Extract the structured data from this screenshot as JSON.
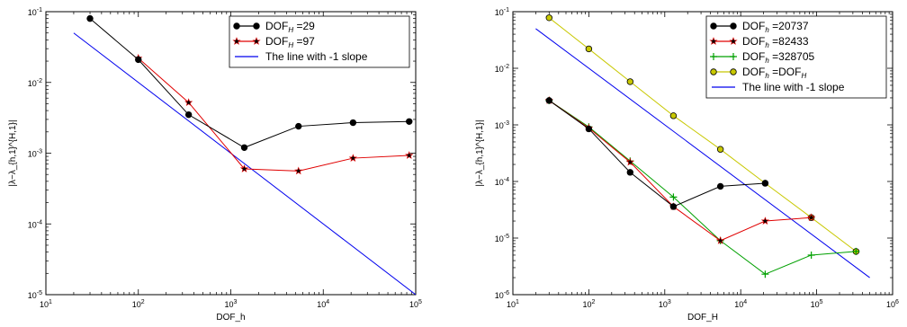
{
  "chart_data": [
    {
      "type": "line",
      "xscale": "log",
      "yscale": "log",
      "xlim": [
        10,
        100000
      ],
      "ylim": [
        1e-05,
        0.1
      ],
      "xlabel": "DOF_h",
      "ylabel": "|λ−λ_{h,1}^{H,1}|",
      "legend_position": "top-right",
      "x_ticks": [
        {
          "v": 10,
          "base": "10",
          "exp": "1"
        },
        {
          "v": 100,
          "base": "10",
          "exp": "2"
        },
        {
          "v": 1000,
          "base": "10",
          "exp": "3"
        },
        {
          "v": 10000,
          "base": "10",
          "exp": "4"
        },
        {
          "v": 100000,
          "base": "10",
          "exp": "5"
        }
      ],
      "y_ticks": [
        {
          "v": 1e-05,
          "base": "10",
          "exp": "-5"
        },
        {
          "v": 0.0001,
          "base": "10",
          "exp": "-4"
        },
        {
          "v": 0.001,
          "base": "10",
          "exp": "-3"
        },
        {
          "v": 0.01,
          "base": "10",
          "exp": "-2"
        },
        {
          "v": 0.1,
          "base": "10",
          "exp": "-1"
        }
      ],
      "series": [
        {
          "name": "DOF_H =29",
          "legend_main": "DOF",
          "legend_sub": "H",
          "legend_value": " =29",
          "color": "#000000",
          "marker": "circle",
          "marker_fill": "#000000",
          "x": [
            30,
            100,
            350,
            1400,
            5400,
            21000,
            85000
          ],
          "y": [
            0.08,
            0.021,
            0.0035,
            0.0012,
            0.0024,
            0.0027,
            0.0028
          ]
        },
        {
          "name": "DOF_H =97",
          "legend_main": "DOF",
          "legend_sub": "H",
          "legend_value": " =97",
          "color": "#e00000",
          "marker": "star",
          "marker_fill": "#000000",
          "x": [
            100,
            350,
            1400,
            5400,
            21000,
            85000
          ],
          "y": [
            0.022,
            0.0052,
            0.0006,
            0.00056,
            0.00085,
            0.00093
          ]
        },
        {
          "name": "The line with -1 slope",
          "legend_main": "The line with -1 slope",
          "legend_sub": "",
          "legend_value": "",
          "color": "#0000ee",
          "marker": "none",
          "marker_fill": "none",
          "x": [
            20,
            100000
          ],
          "y": [
            0.05,
            1e-05
          ]
        }
      ]
    },
    {
      "type": "line",
      "xscale": "log",
      "yscale": "log",
      "xlim": [
        10,
        1000000
      ],
      "ylim": [
        1e-06,
        0.1
      ],
      "xlabel": "DOF_H",
      "ylabel": "|λ−λ_{h,1}^{H,1}|",
      "legend_position": "top-right",
      "x_ticks": [
        {
          "v": 10,
          "base": "10",
          "exp": "1"
        },
        {
          "v": 100,
          "base": "10",
          "exp": "2"
        },
        {
          "v": 1000,
          "base": "10",
          "exp": "3"
        },
        {
          "v": 10000,
          "base": "10",
          "exp": "4"
        },
        {
          "v": 100000,
          "base": "10",
          "exp": "5"
        },
        {
          "v": 1000000,
          "base": "10",
          "exp": "6"
        }
      ],
      "y_ticks": [
        {
          "v": 1e-06,
          "base": "10",
          "exp": "-6"
        },
        {
          "v": 1e-05,
          "base": "10",
          "exp": "-5"
        },
        {
          "v": 0.0001,
          "base": "10",
          "exp": "-4"
        },
        {
          "v": 0.001,
          "base": "10",
          "exp": "-3"
        },
        {
          "v": 0.01,
          "base": "10",
          "exp": "-2"
        },
        {
          "v": 0.1,
          "base": "10",
          "exp": "-1"
        }
      ],
      "series": [
        {
          "name": "DOF_h =20737",
          "legend_main": "DOF",
          "legend_sub": "h",
          "legend_value": " =20737",
          "color": "#000000",
          "marker": "circle",
          "marker_fill": "#000000",
          "x": [
            30,
            100,
            350,
            1300,
            5400,
            21000
          ],
          "y": [
            0.0027,
            0.00085,
            0.000145,
            3.6e-05,
            8.2e-05,
            9.3e-05
          ]
        },
        {
          "name": "DOF_h =82433",
          "legend_main": "DOF",
          "legend_sub": "h",
          "legend_value": " =82433",
          "color": "#e00000",
          "marker": "star",
          "marker_fill": "#000000",
          "x": [
            30,
            100,
            350,
            1300,
            5400,
            21000,
            85000
          ],
          "y": [
            0.0027,
            0.00088,
            0.00022,
            3.6e-05,
            9e-06,
            2e-05,
            2.3e-05
          ]
        },
        {
          "name": "DOF_h =328705",
          "legend_main": "DOF",
          "legend_sub": "h",
          "legend_value": " =328705",
          "color": "#00a000",
          "marker": "plus",
          "marker_fill": "#00a000",
          "x": [
            30,
            100,
            350,
            1300,
            5400,
            21000,
            85000,
            330000
          ],
          "y": [
            0.0027,
            0.00092,
            0.00023,
            5.3e-05,
            9e-06,
            2.3e-06,
            5e-06,
            5.8e-06
          ]
        },
        {
          "name": "DOF_h =DOF_H",
          "legend_main": "DOF",
          "legend_sub": "h",
          "legend_value": " =DOF",
          "legend_sub2": "H",
          "color": "#c8c800",
          "marker": "circle",
          "marker_fill": "#c8c800",
          "x": [
            30,
            100,
            350,
            1300,
            5400,
            21000,
            85000,
            330000
          ],
          "y": [
            0.078,
            0.022,
            0.0058,
            0.00145,
            0.00037,
            9.3e-05,
            2.3e-05,
            5.8e-06
          ]
        },
        {
          "name": "The line with -1 slope",
          "legend_main": "The line with -1 slope",
          "legend_sub": "",
          "legend_value": "",
          "color": "#0000ee",
          "marker": "none",
          "marker_fill": "none",
          "x": [
            20,
            500000
          ],
          "y": [
            0.05,
            2e-06
          ]
        }
      ]
    }
  ]
}
